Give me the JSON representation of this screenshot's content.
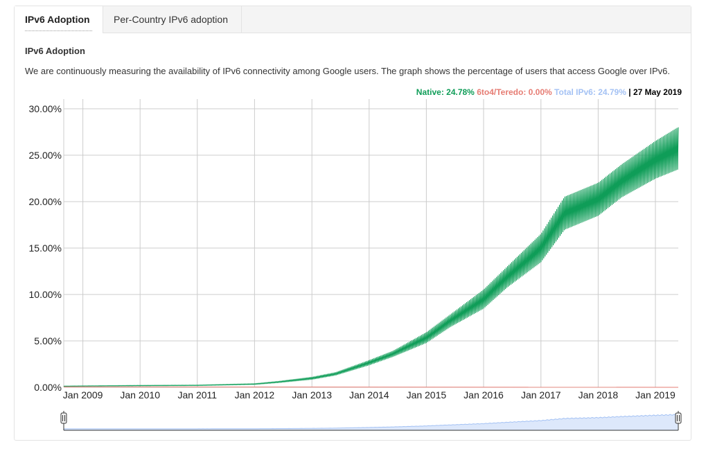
{
  "tabs": [
    {
      "label": "IPv6 Adoption",
      "active": true
    },
    {
      "label": "Per-Country IPv6 adoption",
      "active": false
    }
  ],
  "section_title": "IPv6 Adoption",
  "description": "We are continuously measuring the availability of IPv6 connectivity among Google users. The graph shows the percentage of users that access Google over IPv6.",
  "legend": {
    "native_label": "Native:",
    "native_value": "24.78%",
    "teredo_label": "6to4/Teredo:",
    "teredo_value": "0.00%",
    "total_label": "Total IPv6:",
    "total_value": "24.79%",
    "separator": "|",
    "date": "27 May 2019"
  },
  "colors": {
    "native": "#0f9d58",
    "teredo": "#e67c73",
    "total": "#a4c2f4",
    "grid": "#cccccc"
  },
  "chart_data": {
    "type": "area",
    "title": "",
    "xlabel": "",
    "ylabel": "",
    "ylim": [
      0,
      30
    ],
    "x_range": [
      "2008-09-01",
      "2019-05-27"
    ],
    "y_ticks": [
      "0.00%",
      "5.00%",
      "10.00%",
      "15.00%",
      "20.00%",
      "25.00%",
      "30.00%"
    ],
    "x_ticks": [
      "Jan 2009",
      "Jan 2010",
      "Jan 2011",
      "Jan 2012",
      "Jan 2013",
      "Jan 2014",
      "Jan 2015",
      "Jan 2016",
      "Jan 2017",
      "Jan 2018",
      "Jan 2019"
    ],
    "grid": true,
    "legend_position": "top-right",
    "series": [
      {
        "name": "Native",
        "x": [
          "2008-09-01",
          "2009-01-01",
          "2010-01-01",
          "2011-01-01",
          "2012-01-01",
          "2012-06-01",
          "2013-01-01",
          "2013-06-01",
          "2014-01-01",
          "2014-06-01",
          "2015-01-01",
          "2015-06-01",
          "2016-01-01",
          "2016-06-01",
          "2017-01-01",
          "2017-06-01",
          "2018-01-01",
          "2018-06-01",
          "2019-01-01",
          "2019-05-27"
        ],
        "y_low": [
          0.1,
          0.12,
          0.15,
          0.18,
          0.3,
          0.5,
          0.85,
          1.3,
          2.4,
          3.3,
          4.8,
          6.5,
          8.5,
          10.8,
          13.5,
          17.0,
          18.5,
          20.5,
          22.5,
          23.5
        ],
        "y_high": [
          0.14,
          0.16,
          0.22,
          0.25,
          0.4,
          0.65,
          1.1,
          1.6,
          2.9,
          3.9,
          5.9,
          7.8,
          10.5,
          13.0,
          16.5,
          20.5,
          22.0,
          24.0,
          26.5,
          28.0
        ]
      },
      {
        "name": "6to4/Teredo",
        "x": [
          "2008-09-01",
          "2019-05-27"
        ],
        "y": [
          0.05,
          0.0
        ]
      },
      {
        "name": "Total IPv6",
        "x": [
          "2008-09-01",
          "2019-05-27"
        ],
        "y": [
          0.14,
          24.79
        ]
      }
    ]
  }
}
